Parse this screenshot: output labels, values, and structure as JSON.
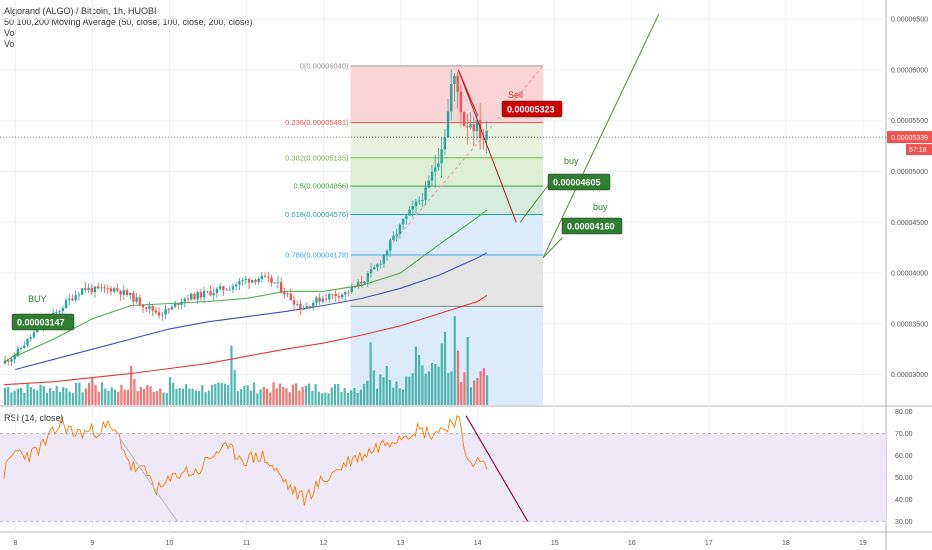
{
  "header": {
    "title": "Algorand (ALGO) / Bitcoin, 1h, HUOBI",
    "ma_label": "50,100,200 Moving Average (50, close, 100, close, 200, close)",
    "vol1": "Vol",
    "vol2": "Vol"
  },
  "rsi_label": "RSI (14, close)",
  "price_axis": {
    "ticks": [
      "0.00006500",
      "0.00006000",
      "0.00005500",
      "0.00005000",
      "0.00004500",
      "0.00004000",
      "0.00003500",
      "0.00003000"
    ],
    "current_price": "0.00005339",
    "countdown": "57:18"
  },
  "rsi_axis": {
    "ticks": [
      "80.00",
      "70.00",
      "60.00",
      "50.00",
      "40.00",
      "30.00"
    ]
  },
  "time_axis": {
    "ticks": [
      "8",
      "9",
      "10",
      "11",
      "12",
      "13",
      "14",
      "15",
      "16",
      "17",
      "18",
      "19"
    ]
  },
  "fib_levels": [
    {
      "label": "0(0.00006040)",
      "value": 6.04e-05
    },
    {
      "label": "0.236(0.00005481)",
      "value": 5.481e-05
    },
    {
      "label": "0.382(0.00005135)",
      "value": 5.135e-05
    },
    {
      "label": "0.5(0.00004856)",
      "value": 4.856e-05
    },
    {
      "label": "0.618(0.00004576)",
      "value": 4.576e-05
    },
    {
      "label": "0.786(0.00004178)",
      "value": 4.178e-05
    },
    {
      "label": "",
      "value": 3.672e-05
    }
  ],
  "annotations": {
    "sell_text": "Sell",
    "sell_price": "0.00005323",
    "buy1_text": "buy",
    "buy1_price": "0.00004605",
    "buy2_text": "buy",
    "buy2_price": "0.00004160",
    "buy0_text": "BUY",
    "buy0_price": "0.00003147"
  },
  "colors": {
    "up": "#26a69a",
    "down": "#ef5350",
    "ma50": "#4caf50",
    "ma100": "#3f51b5",
    "ma200": "#e53935",
    "rsi": "#f57c00",
    "sell_tag": "#cc0000",
    "buy_tag": "#2e7d32"
  },
  "chart_data": {
    "type": "candlestick",
    "pair": "ALGO/BTC",
    "interval": "1h",
    "y_range": [
      2.7e-05,
      6.65e-05
    ],
    "rsi_range": [
      27,
      82
    ],
    "rsi_bands": [
      30,
      70
    ],
    "x_range_days": [
      7.8,
      19.3
    ],
    "current_price": 5.339e-05,
    "price_path": [
      [
        7.85,
        3.11e-05
      ],
      [
        8.0,
        3.18e-05
      ],
      [
        8.2,
        3.35e-05
      ],
      [
        8.4,
        3.52e-05
      ],
      [
        8.55,
        3.6e-05
      ],
      [
        8.7,
        3.72e-05
      ],
      [
        8.9,
        3.85e-05
      ],
      [
        9.1,
        3.83e-05
      ],
      [
        9.3,
        3.85e-05
      ],
      [
        9.5,
        3.78e-05
      ],
      [
        9.7,
        3.68e-05
      ],
      [
        9.9,
        3.6e-05
      ],
      [
        10.05,
        3.65e-05
      ],
      [
        10.2,
        3.75e-05
      ],
      [
        10.4,
        3.78e-05
      ],
      [
        10.6,
        3.82e-05
      ],
      [
        10.8,
        3.86e-05
      ],
      [
        11.0,
        3.93e-05
      ],
      [
        11.2,
        3.95e-05
      ],
      [
        11.4,
        3.9e-05
      ],
      [
        11.6,
        3.75e-05
      ],
      [
        11.75,
        3.65e-05
      ],
      [
        11.9,
        3.72e-05
      ],
      [
        12.1,
        3.78e-05
      ],
      [
        12.3,
        3.8e-05
      ],
      [
        12.45,
        3.87e-05
      ],
      [
        12.6,
        3.97e-05
      ],
      [
        12.75,
        4.1e-05
      ],
      [
        12.9,
        4.3e-05
      ],
      [
        13.05,
        4.5e-05
      ],
      [
        13.2,
        4.65e-05
      ],
      [
        13.35,
        4.8e-05
      ],
      [
        13.5,
        5.12e-05
      ],
      [
        13.62,
        5.45e-05
      ],
      [
        13.7,
        5.95e-05
      ],
      [
        13.78,
        5.75e-05
      ],
      [
        13.85,
        5.48e-05
      ],
      [
        13.95,
        5.5e-05
      ],
      [
        14.1,
        5.34e-05
      ]
    ],
    "ma50_path": [
      [
        8.0,
        3.18e-05
      ],
      [
        8.5,
        3.35e-05
      ],
      [
        9.0,
        3.55e-05
      ],
      [
        9.5,
        3.68e-05
      ],
      [
        10.0,
        3.7e-05
      ],
      [
        10.5,
        3.72e-05
      ],
      [
        11.0,
        3.75e-05
      ],
      [
        11.5,
        3.82e-05
      ],
      [
        12.0,
        3.82e-05
      ],
      [
        12.5,
        3.88e-05
      ],
      [
        13.0,
        4e-05
      ],
      [
        13.5,
        4.28e-05
      ],
      [
        14.0,
        4.55e-05
      ],
      [
        14.12,
        4.62e-05
      ]
    ],
    "ma100_path": [
      [
        8.0,
        3.05e-05
      ],
      [
        8.5,
        3.15e-05
      ],
      [
        9.0,
        3.25e-05
      ],
      [
        9.5,
        3.35e-05
      ],
      [
        10.0,
        3.45e-05
      ],
      [
        10.5,
        3.52e-05
      ],
      [
        11.0,
        3.57e-05
      ],
      [
        11.5,
        3.62e-05
      ],
      [
        12.0,
        3.68e-05
      ],
      [
        12.5,
        3.75e-05
      ],
      [
        13.0,
        3.85e-05
      ],
      [
        13.5,
        3.98e-05
      ],
      [
        14.0,
        4.15e-05
      ],
      [
        14.12,
        4.2e-05
      ]
    ],
    "ma200_path": [
      [
        7.85,
        2.9e-05
      ],
      [
        8.5,
        2.93e-05
      ],
      [
        9.0,
        2.97e-05
      ],
      [
        9.5,
        3.01e-05
      ],
      [
        10.0,
        3.06e-05
      ],
      [
        10.5,
        3.11e-05
      ],
      [
        11.0,
        3.18e-05
      ],
      [
        11.5,
        3.25e-05
      ],
      [
        12.0,
        3.31e-05
      ],
      [
        12.5,
        3.39e-05
      ],
      [
        13.0,
        3.48e-05
      ],
      [
        13.5,
        3.6e-05
      ],
      [
        14.0,
        3.72e-05
      ],
      [
        14.12,
        3.78e-05
      ]
    ],
    "rsi_path": [
      [
        7.85,
        52
      ],
      [
        8.0,
        62
      ],
      [
        8.2,
        60
      ],
      [
        8.4,
        66
      ],
      [
        8.6,
        75
      ],
      [
        8.75,
        70
      ],
      [
        9.0,
        71
      ],
      [
        9.2,
        73
      ],
      [
        9.35,
        68
      ],
      [
        9.5,
        55
      ],
      [
        9.7,
        52
      ],
      [
        9.85,
        44
      ],
      [
        10.0,
        48
      ],
      [
        10.15,
        53
      ],
      [
        10.35,
        52
      ],
      [
        10.5,
        58
      ],
      [
        10.65,
        63
      ],
      [
        10.8,
        62
      ],
      [
        11.0,
        58
      ],
      [
        11.2,
        60
      ],
      [
        11.4,
        52
      ],
      [
        11.6,
        44
      ],
      [
        11.75,
        40
      ],
      [
        11.9,
        46
      ],
      [
        12.05,
        50
      ],
      [
        12.2,
        54
      ],
      [
        12.35,
        58
      ],
      [
        12.5,
        60
      ],
      [
        12.7,
        64
      ],
      [
        12.9,
        68
      ],
      [
        13.05,
        70
      ],
      [
        13.2,
        72
      ],
      [
        13.4,
        70
      ],
      [
        13.55,
        72
      ],
      [
        13.68,
        76
      ],
      [
        13.75,
        77
      ],
      [
        13.82,
        62
      ],
      [
        13.92,
        58
      ],
      [
        14.05,
        56
      ],
      [
        14.12,
        55
      ]
    ],
    "volume_peaks": [
      [
        9.0,
        0.35
      ],
      [
        9.5,
        0.5
      ],
      [
        10.0,
        0.3
      ],
      [
        10.8,
        0.75
      ],
      [
        11.7,
        0.2
      ],
      [
        12.6,
        0.65
      ],
      [
        13.2,
        0.55
      ],
      [
        13.55,
        0.8
      ],
      [
        13.7,
        1.0
      ],
      [
        13.85,
        0.6
      ],
      [
        14.05,
        0.4
      ]
    ],
    "drawings": {
      "fib_retracement": {
        "x_range_days": [
          12.35,
          14.85
        ],
        "from": 6.04e-05,
        "to": 3.672e-05
      },
      "sell_arrow": {
        "from": [
          13.75,
          6e-05
        ],
        "to": [
          14.5,
          4.5e-05
        ]
      },
      "rise_line": {
        "from": [
          14.85,
          4.15e-05
        ],
        "to": [
          16.35,
          6.55e-05
        ]
      },
      "buy1_line": {
        "from": [
          14.55,
          4.5e-05
        ],
        "to": [
          14.95,
          4.9e-05
        ]
      },
      "buy2_line": {
        "from": [
          14.85,
          4.15e-05
        ],
        "to": [
          15.1,
          4.35e-05
        ]
      },
      "rsi_down_line": {
        "from": [
          13.85,
          78
        ],
        "to": [
          14.65,
          30
        ]
      },
      "rsi_grey_trend": {
        "from": [
          9.35,
          68
        ],
        "to": [
          10.1,
          30
        ]
      }
    }
  }
}
